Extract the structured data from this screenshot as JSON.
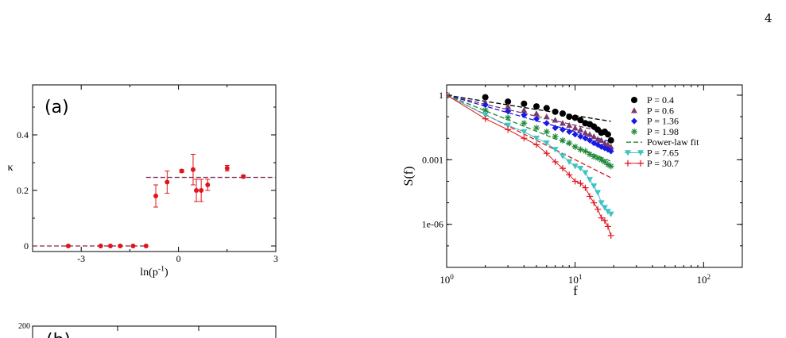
{
  "page": {
    "page_number": "4"
  },
  "chart_data": [
    {
      "type": "scatter",
      "panel_label": "(a)",
      "xlabel": "ln(p^-1)",
      "ylabel": "κ",
      "xlim": [
        -4.5,
        3
      ],
      "ylim": [
        -0.02,
        0.58
      ],
      "xticks": [
        -3,
        0,
        3
      ],
      "xtick_labels": [
        "-3",
        "0",
        "3"
      ],
      "yticks": [
        0,
        0.2,
        0.4
      ],
      "ytick_labels": [
        "0",
        "0.2",
        "0.4"
      ],
      "points": [
        {
          "x": -3.4,
          "y": 0.0,
          "err": 0
        },
        {
          "x": -2.4,
          "y": 0.0,
          "err": 0
        },
        {
          "x": -2.1,
          "y": 0.0,
          "err": 0
        },
        {
          "x": -1.8,
          "y": 0.0,
          "err": 0
        },
        {
          "x": -1.4,
          "y": 0.0,
          "err": 0
        },
        {
          "x": -1.0,
          "y": 0.0,
          "err": 0
        },
        {
          "x": -0.7,
          "y": 0.18,
          "err": 0.04
        },
        {
          "x": -0.35,
          "y": 0.23,
          "err": 0.04
        },
        {
          "x": 0.1,
          "y": 0.27,
          "err": 0.005
        },
        {
          "x": 0.45,
          "y": 0.275,
          "err": 0.055
        },
        {
          "x": 0.55,
          "y": 0.2,
          "err": 0.04
        },
        {
          "x": 0.7,
          "y": 0.2,
          "err": 0.04
        },
        {
          "x": 0.9,
          "y": 0.22,
          "err": 0.02
        },
        {
          "x": 1.5,
          "y": 0.28,
          "err": 0.01
        },
        {
          "x": 2.0,
          "y": 0.25,
          "err": 0.005
        }
      ],
      "fit_lines": [
        {
          "x": [
            -4.5,
            -1.0
          ],
          "y": [
            0.0,
            0.0
          ]
        },
        {
          "x": [
            -1.0,
            3.0
          ],
          "y": [
            0.247,
            0.247
          ]
        }
      ],
      "colors": {
        "points": "#e0141a",
        "fit": "#7a2950"
      }
    },
    {
      "type": "line",
      "xlabel": "f",
      "ylabel": "S(f)",
      "x_scale": "log",
      "y_scale": "log",
      "xlim": [
        1,
        200
      ],
      "ylim": [
        1e-08,
        3
      ],
      "xticks": [
        1,
        10,
        100
      ],
      "xtick_labels": [
        "10^0",
        "10^1",
        "10^2"
      ],
      "yticks": [
        1,
        0.001,
        1e-06
      ],
      "ytick_labels": [
        "1",
        "0.001",
        "1e-06"
      ],
      "legend_position": "top-right",
      "series": [
        {
          "name": "P = 0.4",
          "marker": "circle",
          "color": "#000000",
          "x": [
            1,
            2,
            3,
            4,
            5,
            6,
            7,
            8,
            9,
            10,
            11,
            12,
            13,
            14,
            15,
            16,
            17,
            18,
            19
          ],
          "y": [
            1,
            0.8,
            0.5,
            0.4,
            0.3,
            0.25,
            0.17,
            0.14,
            0.1,
            0.09,
            0.07,
            0.05,
            0.045,
            0.035,
            0.025,
            0.018,
            0.02,
            0.015,
            0.008
          ]
        },
        {
          "name": "P = 0.6",
          "marker": "triangle",
          "color": "#7a3a6a",
          "x": [
            1,
            2,
            3,
            4,
            5,
            6,
            7,
            8,
            9,
            10,
            11,
            12,
            13,
            14,
            15,
            16,
            17,
            18,
            19
          ],
          "y": [
            1,
            0.45,
            0.3,
            0.2,
            0.14,
            0.1,
            0.07,
            0.05,
            0.04,
            0.03,
            0.025,
            0.018,
            0.015,
            0.012,
            0.009,
            0.008,
            0.006,
            0.005,
            0.004
          ]
        },
        {
          "name": "P = 1.36",
          "marker": "diamond",
          "color": "#1a1ae6",
          "x": [
            1,
            2,
            3,
            4,
            5,
            6,
            7,
            8,
            9,
            10,
            11,
            12,
            13,
            14,
            15,
            16,
            17,
            18,
            19
          ],
          "y": [
            1,
            0.35,
            0.18,
            0.12,
            0.08,
            0.05,
            0.03,
            0.025,
            0.02,
            0.015,
            0.012,
            0.01,
            0.008,
            0.006,
            0.005,
            0.004,
            0.0035,
            0.003,
            0.0025
          ]
        },
        {
          "name": "P = 1.98",
          "marker": "star",
          "color": "#1f8a3a",
          "x": [
            1,
            2,
            3,
            4,
            5,
            6,
            7,
            8,
            9,
            10,
            11,
            12,
            13,
            14,
            15,
            16,
            17,
            18,
            19
          ],
          "y": [
            1,
            0.2,
            0.09,
            0.05,
            0.03,
            0.02,
            0.012,
            0.008,
            0.006,
            0.004,
            0.003,
            0.0025,
            0.0018,
            0.0014,
            0.0012,
            0.001,
            0.0008,
            0.0006,
            0.0005
          ]
        },
        {
          "name": "P = 7.65",
          "marker": "triangle-down",
          "color": "#3ec4c4",
          "x": [
            1,
            2,
            3,
            4,
            5,
            6,
            7,
            8,
            9,
            10,
            11,
            12,
            13,
            14,
            15,
            16,
            17,
            18,
            19
          ],
          "y": [
            1,
            0.12,
            0.04,
            0.02,
            0.01,
            0.006,
            0.003,
            0.0015,
            0.0008,
            0.0005,
            0.0004,
            0.00025,
            0.00012,
            6e-05,
            3e-05,
            1e-05,
            6e-06,
            4e-06,
            3e-06
          ]
        },
        {
          "name": "P = 30.7",
          "marker": "plus",
          "color": "#e0141a",
          "x": [
            1,
            2,
            3,
            4,
            5,
            6,
            7,
            8,
            9,
            10,
            11,
            12,
            13,
            14,
            15,
            16,
            17,
            18,
            19
          ],
          "y": [
            1,
            0.08,
            0.025,
            0.01,
            0.005,
            0.002,
            0.0008,
            0.0004,
            0.0002,
            0.0001,
            8e-05,
            5e-05,
            2e-05,
            1e-05,
            5e-06,
            2e-06,
            1.5e-06,
            8e-07,
            3e-07
          ]
        }
      ],
      "fit_label": "Power-law fit",
      "fit_color": "#1f8a3a",
      "fit_lines": [
        {
          "color": "#000000",
          "exponent": -0.95
        },
        {
          "color": "#7a3a6a",
          "exponent": -1.4
        },
        {
          "color": "#1a1ae6",
          "exponent": -1.7
        },
        {
          "color": "#1f8a3a",
          "exponent": -2.4
        },
        {
          "color": "#e0141a",
          "exponent": -3.0
        }
      ]
    },
    {
      "type": "scatter",
      "panel_label": "(b)",
      "ytick_labels": [
        "200"
      ]
    }
  ]
}
